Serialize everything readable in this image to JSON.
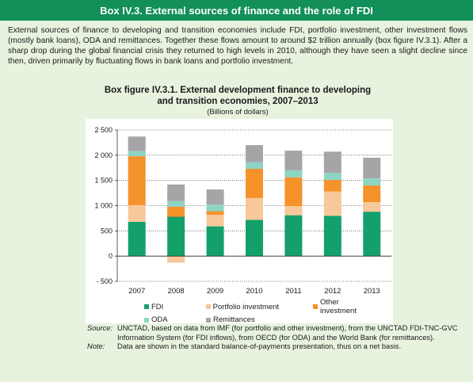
{
  "box": {
    "title": "Box IV.3. External sources of finance and the role of FDI",
    "intro": "External sources of finance to developing and transition economies include FDI, portfolio investment, other investment flows (mostly bank loans), ODA and remittances. Together these flows amount to around $2 trillion annually (box figure IV.3.1). After a sharp drop during the global financial crisis they returned to high levels in 2010, although they have seen a slight decline since then, driven primarily by fluctuating flows in bank loans and portfolio investment."
  },
  "figure": {
    "title_line1": "Box figure IV.3.1. External development finance to developing",
    "title_line2": "and transition economies, 2007–2013",
    "subtitle": "(Billions of dollars)"
  },
  "chart_data": {
    "type": "bar",
    "stacked": true,
    "categories": [
      "2007",
      "2008",
      "2009",
      "2010",
      "2011",
      "2012",
      "2013"
    ],
    "series": [
      {
        "name": "FDI",
        "color": "#13a06b",
        "values": [
          680,
          780,
          590,
          720,
          810,
          800,
          880
        ]
      },
      {
        "name": "Portfolio investment",
        "color": "#f7c89a",
        "values": [
          330,
          -130,
          230,
          430,
          180,
          480,
          190
        ]
      },
      {
        "name": "Other investment",
        "color": "#f5922a",
        "values": [
          970,
          200,
          70,
          580,
          570,
          230,
          330
        ]
      },
      {
        "name": "ODA",
        "color": "#8dd4c3",
        "values": [
          100,
          110,
          130,
          130,
          140,
          140,
          140
        ]
      },
      {
        "name": "Remittances",
        "color": "#a5a5a8",
        "values": [
          290,
          330,
          300,
          340,
          390,
          420,
          410
        ]
      }
    ],
    "yticks": [
      2500,
      2000,
      1500,
      1000,
      500,
      0,
      -500
    ],
    "ytick_labels": [
      "2 500",
      "2 000",
      "1 500",
      "1 000",
      "500",
      "0",
      "- 500"
    ],
    "ylim": [
      -500,
      2500
    ],
    "grid": true,
    "legend_position": "bottom"
  },
  "legend": {
    "fdi": "FDI",
    "portfolio": "Portfolio investment",
    "other": "Other investment",
    "oda": "ODA",
    "remittances": "Remittances"
  },
  "notes": {
    "source_label": "Source:",
    "source_text": "UNCTAD, based on data from IMF (for portfolio and other investment), from the UNCTAD FDI-TNC-GVC Information System (for FDI inflows), from OECD (for ODA) and the World Bank (for remittances).",
    "note_label": "Note:",
    "note_text": "Data are shown in the standard balance-of-payments presentation, thus on a net basis."
  }
}
